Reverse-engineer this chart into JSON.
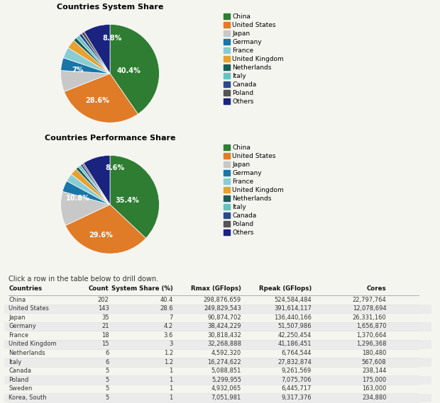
{
  "pie1_title": "Countries System Share",
  "pie2_title": "Countries Performance Share",
  "table_note": "Click a row in the table below to drill down.",
  "legend_labels": [
    "China",
    "United States",
    "Japan",
    "Germany",
    "France",
    "United Kingdom",
    "Netherlands",
    "Italy",
    "Canada",
    "Poland",
    "Others"
  ],
  "colors": [
    "#2e7d32",
    "#e07b28",
    "#c8c8c8",
    "#1976a8",
    "#89cdd4",
    "#e8a030",
    "#1a5c5c",
    "#66c2c2",
    "#2a4a8a",
    "#555555",
    "#1a237e"
  ],
  "pie1_values": [
    40.4,
    28.6,
    7.0,
    4.2,
    3.6,
    3.0,
    1.2,
    1.2,
    1.0,
    1.0,
    8.8
  ],
  "pie2_values": [
    35.4,
    29.6,
    10.8,
    3.5,
    2.5,
    2.2,
    1.0,
    0.8,
    0.7,
    0.5,
    8.6
  ],
  "table_headers": [
    "Countries",
    "Count",
    "System Share (%)",
    "Rmax (GFlops)",
    "Rpeak (GFlops)",
    "Cores"
  ],
  "table_data": [
    [
      "China",
      "202",
      "40.4",
      "298,876,659",
      "524,584,484",
      "22,797,764"
    ],
    [
      "United States",
      "143",
      "28.6",
      "249,829,543",
      "391,614,117",
      "12,078,694"
    ],
    [
      "Japan",
      "35",
      "7",
      "90,874,702",
      "136,440,166",
      "26,331,160"
    ],
    [
      "Germany",
      "21",
      "4.2",
      "38,424,229",
      "51,507,986",
      "1,656,870"
    ],
    [
      "France",
      "18",
      "3.6",
      "30,818,432",
      "42,250,454",
      "1,370,664"
    ],
    [
      "United Kingdom",
      "15",
      "3",
      "32,268,888",
      "41,186,451",
      "1,296,368"
    ],
    [
      "Netherlands",
      "6",
      "1.2",
      "4,592,320",
      "6,764,544",
      "180,480"
    ],
    [
      "Italy",
      "6",
      "1.2",
      "16,274,622",
      "27,832,874",
      "567,608"
    ],
    [
      "Canada",
      "5",
      "1",
      "5,088,851",
      "9,261,569",
      "238,144"
    ],
    [
      "Poland",
      "5",
      "1",
      "5,299,955",
      "7,075,706",
      "175,000"
    ],
    [
      "Sweden",
      "5",
      "1",
      "4,932,065",
      "6,445,717",
      "163,000"
    ],
    [
      "Korea, South",
      "5",
      "1",
      "7,051,981",
      "9,317,376",
      "234,880"
    ]
  ],
  "bg_color": "#f5f5f0",
  "table_row_alt_color": "#ebebeb"
}
